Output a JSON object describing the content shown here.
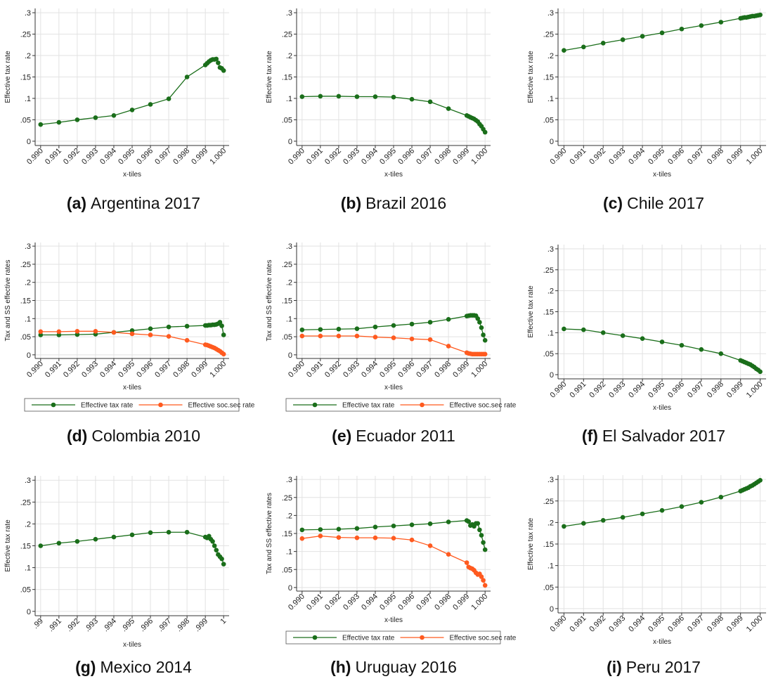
{
  "chart_data": [
    {
      "type": "line",
      "panel": "(a)",
      "caption": "Argentina 2017",
      "ylabel": "Effective tax rate",
      "xlabel": "x-tiles",
      "x": [
        0.99,
        0.991,
        0.992,
        0.993,
        0.994,
        0.995,
        0.996,
        0.997,
        0.998,
        0.999,
        0.9991,
        0.9992,
        0.9993,
        0.9994,
        0.9995,
        0.9996,
        0.9997,
        0.9998,
        0.9999,
        1
      ],
      "series": [
        {
          "color": "#1a6e1a",
          "values": [
            0.039,
            0.044,
            0.05,
            0.055,
            0.06,
            0.073,
            0.086,
            0.099,
            0.15,
            0.178,
            0.182,
            0.186,
            0.189,
            0.191,
            0.191,
            0.192,
            0.183,
            0.172,
            0.17,
            0.165
          ]
        }
      ],
      "xlim": [
        0.9897,
        1.0003
      ],
      "ylim": [
        -0.01,
        0.31
      ],
      "xticks": [
        {
          "value": 0.99,
          "label": "0.990"
        },
        0.991,
        0.992,
        0.993,
        0.994,
        0.995,
        0.996,
        0.997,
        0.998,
        0.999,
        {
          "value": 1,
          "label": "1.000"
        }
      ],
      "yticks": [
        0,
        {
          "value": 0.05,
          "label": ".05"
        },
        {
          "value": 0.1,
          "label": ".1"
        },
        {
          "value": 0.15,
          "label": ".15"
        },
        {
          "value": 0.2,
          "label": ".2"
        },
        {
          "value": 0.25,
          "label": ".25"
        },
        {
          "value": 0.3,
          "label": ".3"
        }
      ],
      "grid": true
    },
    {
      "type": "line",
      "panel": "(b)",
      "caption": "Brazil 2016",
      "ylabel": "Effective tax rate",
      "xlabel": "x-tiles",
      "x": [
        0.99,
        0.991,
        0.992,
        0.993,
        0.994,
        0.995,
        0.996,
        0.997,
        0.998,
        0.999,
        0.9991,
        0.9992,
        0.9993,
        0.9994,
        0.9995,
        0.9996,
        0.9997,
        0.9998,
        0.9999,
        1
      ],
      "series": [
        {
          "color": "#1a6e1a",
          "values": [
            0.104,
            0.105,
            0.105,
            0.104,
            0.104,
            0.103,
            0.098,
            0.092,
            0.076,
            0.06,
            0.058,
            0.056,
            0.054,
            0.052,
            0.049,
            0.046,
            0.04,
            0.035,
            0.028,
            0.021
          ]
        }
      ],
      "xlim": [
        0.9897,
        1.0003
      ],
      "ylim": [
        -0.01,
        0.31
      ],
      "xticks": [
        {
          "value": 0.99,
          "label": "0.990"
        },
        0.991,
        0.992,
        0.993,
        0.994,
        0.995,
        0.996,
        0.997,
        0.998,
        0.999,
        {
          "value": 1,
          "label": "1.000"
        }
      ],
      "yticks": [
        0,
        {
          "value": 0.05,
          "label": ".05"
        },
        {
          "value": 0.1,
          "label": ".1"
        },
        {
          "value": 0.15,
          "label": ".15"
        },
        {
          "value": 0.2,
          "label": ".2"
        },
        {
          "value": 0.25,
          "label": ".25"
        },
        {
          "value": 0.3,
          "label": ".3"
        }
      ],
      "grid": true
    },
    {
      "type": "line",
      "panel": "(c)",
      "caption": "Chile 2017",
      "ylabel": "Effective tax rate",
      "xlabel": "x-tiles",
      "x": [
        0.99,
        0.991,
        0.992,
        0.993,
        0.994,
        0.995,
        0.996,
        0.997,
        0.998,
        0.999,
        0.9991,
        0.9992,
        0.9993,
        0.9994,
        0.9995,
        0.9996,
        0.9997,
        0.9998,
        0.9999,
        1
      ],
      "series": [
        {
          "color": "#1a6e1a",
          "values": [
            0.212,
            0.22,
            0.229,
            0.237,
            0.245,
            0.253,
            0.262,
            0.27,
            0.278,
            0.287,
            0.288,
            0.289,
            0.289,
            0.29,
            0.291,
            0.292,
            0.292,
            0.293,
            0.294,
            0.295
          ]
        }
      ],
      "xlim": [
        0.9897,
        1.0003
      ],
      "ylim": [
        -0.01,
        0.31
      ],
      "xticks": [
        {
          "value": 0.99,
          "label": "0.990"
        },
        0.991,
        0.992,
        0.993,
        0.994,
        0.995,
        0.996,
        0.997,
        0.998,
        0.999,
        {
          "value": 1,
          "label": "1.000"
        }
      ],
      "yticks": [
        0,
        {
          "value": 0.05,
          "label": ".05"
        },
        {
          "value": 0.1,
          "label": ".1"
        },
        {
          "value": 0.15,
          "label": ".15"
        },
        {
          "value": 0.2,
          "label": ".2"
        },
        {
          "value": 0.25,
          "label": ".25"
        },
        {
          "value": 0.3,
          "label": ".3"
        }
      ],
      "grid": true
    },
    {
      "type": "line",
      "panel": "(d)",
      "caption": "Colombia 2010",
      "ylabel": "Tax and SS effective rates",
      "xlabel": "x-tiles",
      "x": [
        0.99,
        0.991,
        0.992,
        0.993,
        0.994,
        0.995,
        0.996,
        0.997,
        0.998,
        0.999,
        0.9991,
        0.9992,
        0.9993,
        0.9994,
        0.9995,
        0.9996,
        0.9997,
        0.9998,
        0.9999,
        1
      ],
      "series": [
        {
          "name": "Effective tax rate",
          "color": "#1a6e1a",
          "values": [
            0.055,
            0.055,
            0.056,
            0.057,
            0.062,
            0.067,
            0.072,
            0.077,
            0.079,
            0.081,
            0.081,
            0.082,
            0.082,
            0.083,
            0.083,
            0.084,
            0.086,
            0.09,
            0.08,
            0.055
          ]
        },
        {
          "name": "Effective soc.sec rate",
          "color": "#ff5a1f",
          "values": [
            0.064,
            0.064,
            0.065,
            0.065,
            0.062,
            0.058,
            0.055,
            0.051,
            0.04,
            0.028,
            0.027,
            0.025,
            0.023,
            0.021,
            0.019,
            0.016,
            0.013,
            0.01,
            0.006,
            0.002
          ]
        }
      ],
      "xlim": [
        0.9897,
        1.0003
      ],
      "ylim": [
        -0.01,
        0.31
      ],
      "xticks": [
        {
          "value": 0.99,
          "label": "0.990"
        },
        0.991,
        0.992,
        0.993,
        0.994,
        0.995,
        0.996,
        0.997,
        0.998,
        0.999,
        {
          "value": 1,
          "label": "1.000"
        }
      ],
      "yticks": [
        0,
        {
          "value": 0.05,
          "label": ".05"
        },
        {
          "value": 0.1,
          "label": ".1"
        },
        {
          "value": 0.15,
          "label": ".15"
        },
        {
          "value": 0.2,
          "label": ".2"
        },
        {
          "value": 0.25,
          "label": ".25"
        },
        {
          "value": 0.3,
          "label": ".3"
        }
      ],
      "grid": true,
      "legend": "bottom"
    },
    {
      "type": "line",
      "panel": "(e)",
      "caption": "Ecuador 2011",
      "ylabel": "Tax and SS effective rates",
      "xlabel": "x-tiles",
      "x": [
        0.99,
        0.991,
        0.992,
        0.993,
        0.994,
        0.995,
        0.996,
        0.997,
        0.998,
        0.999,
        0.9991,
        0.9992,
        0.9993,
        0.9994,
        0.9995,
        0.9996,
        0.9997,
        0.9998,
        0.9999,
        1
      ],
      "series": [
        {
          "name": "Effective tax rate",
          "color": "#1a6e1a",
          "values": [
            0.069,
            0.07,
            0.071,
            0.072,
            0.077,
            0.081,
            0.085,
            0.09,
            0.098,
            0.107,
            0.108,
            0.109,
            0.109,
            0.109,
            0.108,
            0.1,
            0.09,
            0.075,
            0.055,
            0.04
          ]
        },
        {
          "name": "Effective soc.sec rate",
          "color": "#ff5a1f",
          "values": [
            0.052,
            0.052,
            0.052,
            0.052,
            0.049,
            0.047,
            0.044,
            0.042,
            0.024,
            0.006,
            0.004,
            0.003,
            0.002,
            0.002,
            0.002,
            0.002,
            0.002,
            0.002,
            0.002,
            0.002
          ]
        }
      ],
      "xlim": [
        0.9897,
        1.0003
      ],
      "ylim": [
        -0.01,
        0.31
      ],
      "xticks": [
        {
          "value": 0.99,
          "label": "0.990"
        },
        0.991,
        0.992,
        0.993,
        0.994,
        0.995,
        0.996,
        0.997,
        0.998,
        0.999,
        {
          "value": 1,
          "label": "1.000"
        }
      ],
      "yticks": [
        0,
        {
          "value": 0.05,
          "label": ".05"
        },
        {
          "value": 0.1,
          "label": ".1"
        },
        {
          "value": 0.15,
          "label": ".15"
        },
        {
          "value": 0.2,
          "label": ".2"
        },
        {
          "value": 0.25,
          "label": ".25"
        },
        {
          "value": 0.3,
          "label": ".3"
        }
      ],
      "grid": true,
      "legend": "bottom"
    },
    {
      "type": "line",
      "panel": "(f)",
      "caption": "El Salvador 2017",
      "ylabel": "Effective tax rate",
      "xlabel": "x-tiles",
      "x": [
        0.99,
        0.991,
        0.992,
        0.993,
        0.994,
        0.995,
        0.996,
        0.997,
        0.998,
        0.999,
        0.9991,
        0.9992,
        0.9993,
        0.9994,
        0.9995,
        0.9996,
        0.9997,
        0.9998,
        0.9999,
        1
      ],
      "series": [
        {
          "color": "#1a6e1a",
          "values": [
            0.109,
            0.107,
            0.1,
            0.093,
            0.086,
            0.078,
            0.07,
            0.06,
            0.05,
            0.034,
            0.032,
            0.03,
            0.028,
            0.026,
            0.024,
            0.021,
            0.018,
            0.014,
            0.011,
            0.007
          ]
        }
      ],
      "xlim": [
        0.9897,
        1.0003
      ],
      "ylim": [
        -0.01,
        0.31
      ],
      "xticks": [
        {
          "value": 0.99,
          "label": "0.990"
        },
        0.991,
        0.992,
        0.993,
        0.994,
        0.995,
        0.996,
        0.997,
        0.998,
        0.999,
        {
          "value": 1,
          "label": "1.000"
        }
      ],
      "yticks": [
        0,
        {
          "value": 0.05,
          "label": ".05"
        },
        {
          "value": 0.1,
          "label": ".1"
        },
        {
          "value": 0.15,
          "label": ".15"
        },
        {
          "value": 0.2,
          "label": ".2"
        },
        {
          "value": 0.25,
          "label": ".25"
        },
        {
          "value": 0.3,
          "label": ".3"
        }
      ],
      "grid": true
    },
    {
      "type": "line",
      "panel": "(g)",
      "caption": "Mexico 2014",
      "ylabel": "Effective tax rate",
      "xlabel": "x-tiles",
      "x": [
        0.99,
        0.991,
        0.992,
        0.993,
        0.994,
        0.995,
        0.996,
        0.997,
        0.998,
        0.999,
        0.9991,
        0.9992,
        0.9993,
        0.9994,
        0.9995,
        0.9996,
        0.9997,
        0.9998,
        0.9999,
        1
      ],
      "series": [
        {
          "color": "#1a6e1a",
          "values": [
            0.15,
            0.156,
            0.16,
            0.165,
            0.17,
            0.175,
            0.18,
            0.181,
            0.181,
            0.17,
            0.168,
            0.172,
            0.165,
            0.16,
            0.15,
            0.14,
            0.13,
            0.125,
            0.12,
            0.108
          ]
        }
      ],
      "xlim": [
        0.9897,
        1.0003
      ],
      "ylim": [
        -0.01,
        0.31
      ],
      "xticks": [
        {
          "value": 0.99,
          "label": ".99"
        },
        {
          "value": 0.991,
          "label": ".991"
        },
        {
          "value": 0.992,
          "label": ".992"
        },
        {
          "value": 0.993,
          "label": ".993"
        },
        {
          "value": 0.994,
          "label": ".994"
        },
        {
          "value": 0.995,
          "label": ".995"
        },
        {
          "value": 0.996,
          "label": ".996"
        },
        {
          "value": 0.997,
          "label": ".997"
        },
        {
          "value": 0.998,
          "label": ".998"
        },
        {
          "value": 0.999,
          "label": ".999"
        },
        1
      ],
      "yticks": [
        0,
        {
          "value": 0.05,
          "label": ".05"
        },
        {
          "value": 0.1,
          "label": ".1"
        },
        {
          "value": 0.15,
          "label": ".15"
        },
        {
          "value": 0.2,
          "label": ".2"
        },
        {
          "value": 0.25,
          "label": ".25"
        },
        {
          "value": 0.3,
          "label": ".3"
        }
      ],
      "grid": true
    },
    {
      "type": "line",
      "panel": "(h)",
      "caption": "Uruguay 2016",
      "ylabel": "Tax and SS effective rates",
      "xlabel": "x-tiles",
      "x": [
        0.99,
        0.991,
        0.992,
        0.993,
        0.994,
        0.995,
        0.996,
        0.997,
        0.998,
        0.999,
        0.9991,
        0.9992,
        0.9993,
        0.9994,
        0.9995,
        0.9996,
        0.9997,
        0.9998,
        0.9999,
        1
      ],
      "series": [
        {
          "name": "Effective tax rate",
          "color": "#1a6e1a",
          "values": [
            0.16,
            0.161,
            0.162,
            0.164,
            0.168,
            0.171,
            0.174,
            0.177,
            0.182,
            0.186,
            0.183,
            0.172,
            0.175,
            0.17,
            0.178,
            0.178,
            0.16,
            0.145,
            0.125,
            0.105
          ]
        },
        {
          "name": "Effective soc.sec rate",
          "color": "#ff5a1f",
          "values": [
            0.136,
            0.143,
            0.139,
            0.138,
            0.138,
            0.137,
            0.132,
            0.116,
            0.092,
            0.069,
            0.057,
            0.054,
            0.052,
            0.048,
            0.041,
            0.036,
            0.038,
            0.03,
            0.02,
            0.006
          ]
        }
      ],
      "xlim": [
        0.9897,
        1.0003
      ],
      "ylim": [
        -0.01,
        0.31
      ],
      "xticks": [
        {
          "value": 0.99,
          "label": "0.990"
        },
        0.991,
        0.992,
        0.993,
        0.994,
        0.995,
        0.996,
        0.997,
        0.998,
        0.999,
        {
          "value": 1,
          "label": "1.000"
        }
      ],
      "yticks": [
        0,
        {
          "value": 0.05,
          "label": ".05"
        },
        {
          "value": 0.1,
          "label": ".1"
        },
        {
          "value": 0.15,
          "label": ".15"
        },
        {
          "value": 0.2,
          "label": ".2"
        },
        {
          "value": 0.25,
          "label": ".25"
        },
        {
          "value": 0.3,
          "label": ".3"
        }
      ],
      "grid": true,
      "legend": "bottom"
    },
    {
      "type": "line",
      "panel": "(i)",
      "caption": "Peru 2017",
      "ylabel": "Effective tax rate",
      "xlabel": "x-tiles",
      "x": [
        0.99,
        0.991,
        0.992,
        0.993,
        0.994,
        0.995,
        0.996,
        0.997,
        0.998,
        0.999,
        0.9991,
        0.9992,
        0.9993,
        0.9994,
        0.9995,
        0.9996,
        0.9997,
        0.9998,
        0.9999,
        1
      ],
      "series": [
        {
          "color": "#1a6e1a",
          "values": [
            0.191,
            0.198,
            0.205,
            0.212,
            0.22,
            0.228,
            0.237,
            0.247,
            0.259,
            0.273,
            0.275,
            0.277,
            0.279,
            0.281,
            0.284,
            0.286,
            0.289,
            0.292,
            0.295,
            0.298
          ]
        }
      ],
      "xlim": [
        0.9897,
        1.0003
      ],
      "ylim": [
        -0.01,
        0.31
      ],
      "xticks": [
        {
          "value": 0.99,
          "label": "0.990"
        },
        0.991,
        0.992,
        0.993,
        0.994,
        0.995,
        0.996,
        0.997,
        0.998,
        0.999,
        {
          "value": 1,
          "label": "1.000"
        }
      ],
      "yticks": [
        0,
        {
          "value": 0.05,
          "label": ".05"
        },
        {
          "value": 0.1,
          "label": ".1"
        },
        {
          "value": 0.15,
          "label": ".15"
        },
        {
          "value": 0.2,
          "label": ".2"
        },
        {
          "value": 0.25,
          "label": ".25"
        },
        {
          "value": 0.3,
          "label": ".3"
        }
      ],
      "grid": true
    }
  ]
}
